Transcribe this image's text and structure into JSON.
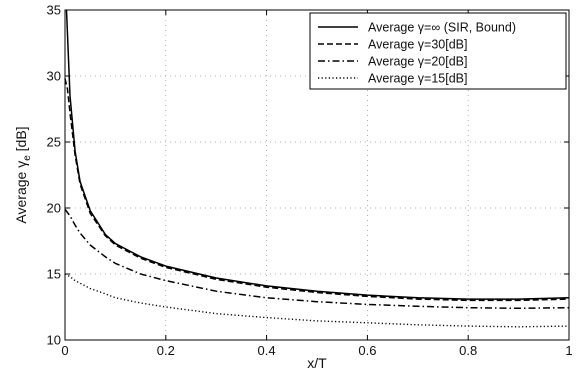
{
  "chart_data": {
    "type": "line",
    "title": "",
    "xlabel": "x/T",
    "ylabel": "Average γ",
    "ylabel_sub": "e",
    "ylabel_unit": " [dB]",
    "xlim": [
      0,
      1
    ],
    "ylim": [
      10,
      35
    ],
    "xticks": [
      0,
      0.2,
      0.4,
      0.6,
      0.8,
      1
    ],
    "xtick_labels": [
      "0",
      "0.2",
      "0.4",
      "0.6",
      "0.8",
      "1"
    ],
    "yticks": [
      10,
      15,
      20,
      25,
      30,
      35
    ],
    "ytick_labels": [
      "10",
      "15",
      "20",
      "25",
      "30",
      "35"
    ],
    "grid": "dotted",
    "legend_position": "top-right",
    "series": [
      {
        "name": "Average γ=∞ (SIR, Bound)",
        "style": "solid",
        "x": [
          0.003,
          0.01,
          0.02,
          0.03,
          0.05,
          0.08,
          0.1,
          0.15,
          0.2,
          0.3,
          0.4,
          0.5,
          0.6,
          0.7,
          0.8,
          0.9,
          1.0
        ],
        "values": [
          35,
          28.5,
          24.3,
          22.0,
          19.8,
          18.0,
          17.3,
          16.3,
          15.6,
          14.7,
          14.1,
          13.7,
          13.4,
          13.2,
          13.1,
          13.1,
          13.2
        ]
      },
      {
        "name": "Average γ=30[dB]",
        "style": "dashed",
        "x": [
          0,
          0.005,
          0.01,
          0.02,
          0.03,
          0.05,
          0.08,
          0.1,
          0.15,
          0.2,
          0.3,
          0.4,
          0.5,
          0.6,
          0.7,
          0.8,
          0.9,
          1.0
        ],
        "values": [
          29.8,
          29.0,
          27.2,
          24.0,
          21.8,
          19.6,
          17.9,
          17.2,
          16.2,
          15.5,
          14.6,
          14.0,
          13.6,
          13.3,
          13.1,
          13.0,
          13.0,
          13.1
        ]
      },
      {
        "name": "Average γ=20[dB]",
        "style": "dashdot",
        "x": [
          0,
          0.01,
          0.02,
          0.03,
          0.05,
          0.08,
          0.1,
          0.15,
          0.2,
          0.3,
          0.4,
          0.5,
          0.6,
          0.7,
          0.8,
          0.9,
          1.0
        ],
        "values": [
          19.9,
          19.4,
          18.7,
          18.1,
          17.2,
          16.3,
          15.8,
          15.0,
          14.5,
          13.7,
          13.2,
          12.9,
          12.7,
          12.55,
          12.45,
          12.4,
          12.45
        ]
      },
      {
        "name": "Average γ=15[dB]",
        "style": "dotted",
        "x": [
          0,
          0.01,
          0.02,
          0.03,
          0.05,
          0.08,
          0.1,
          0.15,
          0.2,
          0.3,
          0.4,
          0.5,
          0.6,
          0.7,
          0.8,
          0.9,
          1.0
        ],
        "values": [
          15.0,
          14.8,
          14.5,
          14.3,
          13.9,
          13.5,
          13.2,
          12.8,
          12.5,
          12.0,
          11.7,
          11.45,
          11.3,
          11.15,
          11.05,
          11.0,
          11.05
        ]
      }
    ]
  }
}
